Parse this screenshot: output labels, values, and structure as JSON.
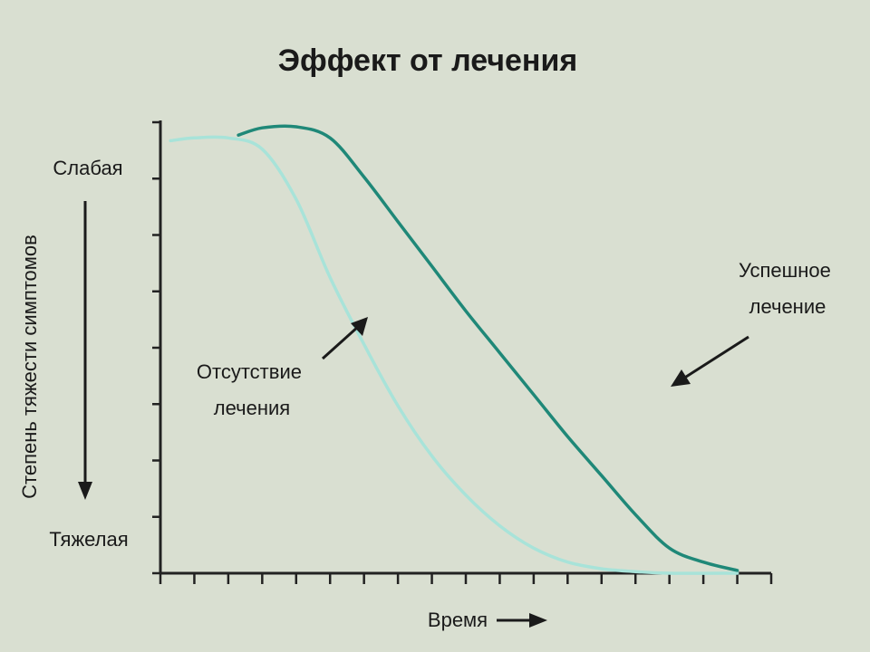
{
  "chart_data": {
    "type": "line",
    "title": "Эффект от лечения",
    "xlabel": "Время",
    "ylabel": "Степень тяжести симптомов",
    "y_top_label": "Слабая",
    "y_bottom_label": "Тяжелая",
    "xlim": [
      0,
      18
    ],
    "ylim": [
      0,
      8
    ],
    "x_tick_count": 18,
    "y_tick_count": 8,
    "grid": false,
    "series": [
      {
        "name": "Отсутствие лечения",
        "color": "#a8e3d9",
        "stroke_width": 3.5,
        "points": [
          [
            0.3,
            7.75
          ],
          [
            1.0,
            7.8
          ],
          [
            2.0,
            7.8
          ],
          [
            3.0,
            7.6
          ],
          [
            4.0,
            6.7
          ],
          [
            5.0,
            5.3
          ],
          [
            6.0,
            4.1
          ],
          [
            7.0,
            3.0
          ],
          [
            8.0,
            2.1
          ],
          [
            9.0,
            1.4
          ],
          [
            10.0,
            0.85
          ],
          [
            11.0,
            0.45
          ],
          [
            12.0,
            0.2
          ],
          [
            13.0,
            0.08
          ],
          [
            14.0,
            0.03
          ],
          [
            15.0,
            0.0
          ],
          [
            17.0,
            0.0
          ]
        ]
      },
      {
        "name": "Успешное лечение",
        "color": "#1f8878",
        "stroke_width": 3.5,
        "points": [
          [
            2.3,
            7.85
          ],
          [
            3.0,
            7.98
          ],
          [
            4.0,
            8.0
          ],
          [
            5.0,
            7.8
          ],
          [
            6.0,
            7.1
          ],
          [
            7.0,
            6.3
          ],
          [
            8.0,
            5.5
          ],
          [
            9.0,
            4.7
          ],
          [
            10.0,
            3.95
          ],
          [
            11.0,
            3.2
          ],
          [
            12.0,
            2.45
          ],
          [
            13.0,
            1.75
          ],
          [
            14.0,
            1.05
          ],
          [
            15.0,
            0.45
          ],
          [
            16.0,
            0.2
          ],
          [
            17.0,
            0.05
          ]
        ]
      }
    ],
    "annotations": [
      {
        "text_lines": [
          "Успешное",
          "лечение"
        ],
        "series": "Успешное лечение"
      },
      {
        "text_lines": [
          "Отсутствие",
          "лечения"
        ],
        "series": "Отсутствие лечения"
      }
    ]
  }
}
